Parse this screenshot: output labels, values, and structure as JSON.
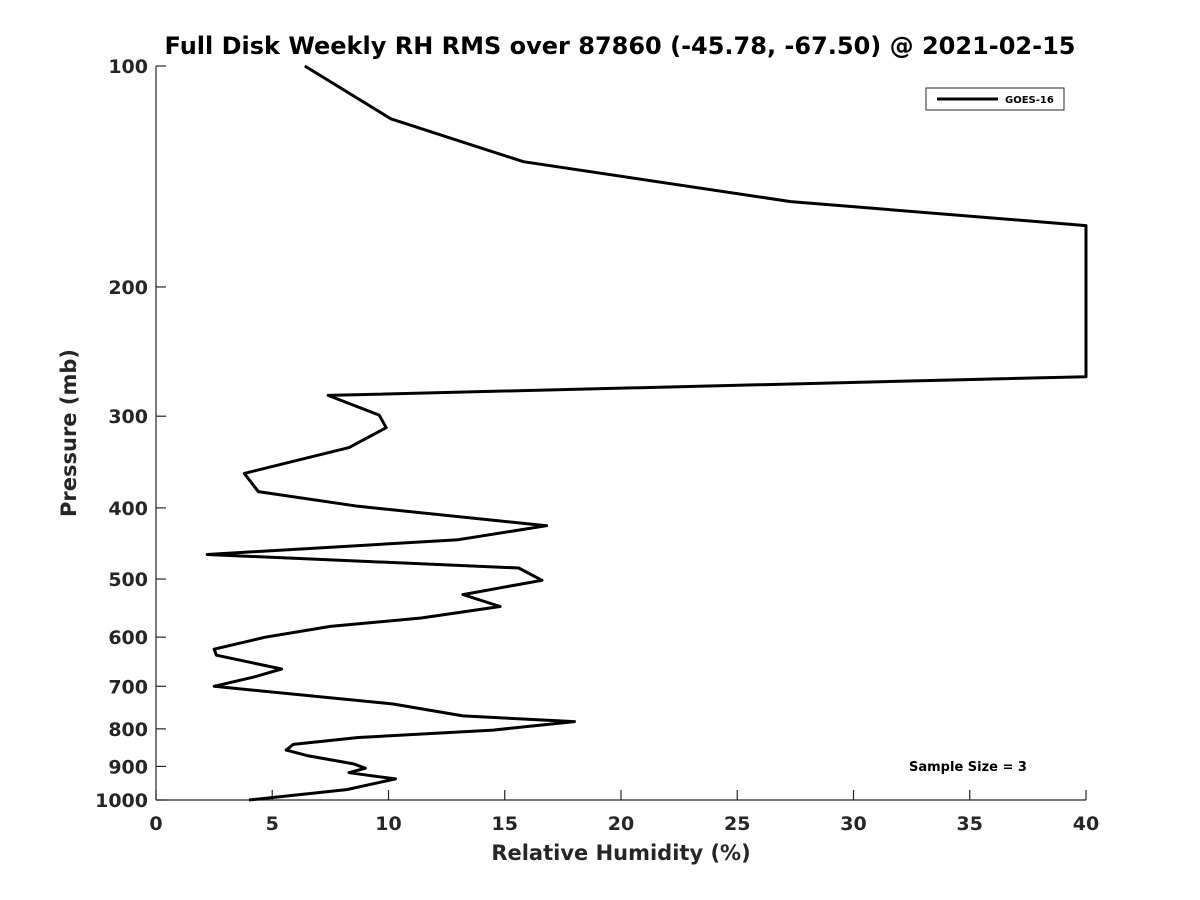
{
  "chart_data": {
    "type": "line",
    "title": "Full Disk Weekly RH RMS over 87860 (-45.78, -67.50) @ 2021-02-15",
    "xlabel": "Relative Humidity (%)",
    "ylabel": "Pressure (mb)",
    "xlim": [
      0,
      40
    ],
    "ylim": [
      100,
      1000
    ],
    "yscale": "log",
    "yaxis_reversed": true,
    "x_ticks": [
      0,
      5,
      10,
      15,
      20,
      25,
      30,
      35,
      40
    ],
    "y_ticks": [
      100,
      200,
      300,
      400,
      500,
      600,
      700,
      800,
      900,
      1000
    ],
    "grid": false,
    "legend": {
      "position": "top-right",
      "entries": [
        "GOES-16"
      ]
    },
    "annotations": [
      {
        "text": "Sample Size = 3",
        "position": "bottom-right"
      }
    ],
    "series": [
      {
        "name": "GOES-16",
        "color": "#000000",
        "points": [
          [
            6.4,
            100
          ],
          [
            10.1,
            118
          ],
          [
            15.8,
            135
          ],
          [
            27.3,
            153
          ],
          [
            40.0,
            165
          ],
          [
            40.0,
            265
          ],
          [
            7.4,
            281
          ],
          [
            9.6,
            299
          ],
          [
            9.9,
            311
          ],
          [
            8.3,
            331
          ],
          [
            3.8,
            359
          ],
          [
            4.4,
            380
          ],
          [
            8.7,
            398
          ],
          [
            16.8,
            423
          ],
          [
            13.0,
            442
          ],
          [
            2.2,
            463
          ],
          [
            15.6,
            483
          ],
          [
            16.6,
            502
          ],
          [
            13.2,
            525
          ],
          [
            14.8,
            545
          ],
          [
            11.4,
            565
          ],
          [
            7.5,
            580
          ],
          [
            4.7,
            600
          ],
          [
            2.5,
            623
          ],
          [
            2.6,
            635
          ],
          [
            5.4,
            663
          ],
          [
            4.2,
            680
          ],
          [
            2.5,
            700
          ],
          [
            10.2,
            740
          ],
          [
            13.2,
            768
          ],
          [
            18.0,
            782
          ],
          [
            14.5,
            803
          ],
          [
            8.7,
            822
          ],
          [
            5.9,
            840
          ],
          [
            5.6,
            855
          ],
          [
            6.5,
            870
          ],
          [
            8.5,
            893
          ],
          [
            9.0,
            905
          ],
          [
            8.3,
            918
          ],
          [
            10.3,
            936
          ],
          [
            8.2,
            968
          ],
          [
            4.0,
            1000
          ]
        ]
      }
    ]
  }
}
